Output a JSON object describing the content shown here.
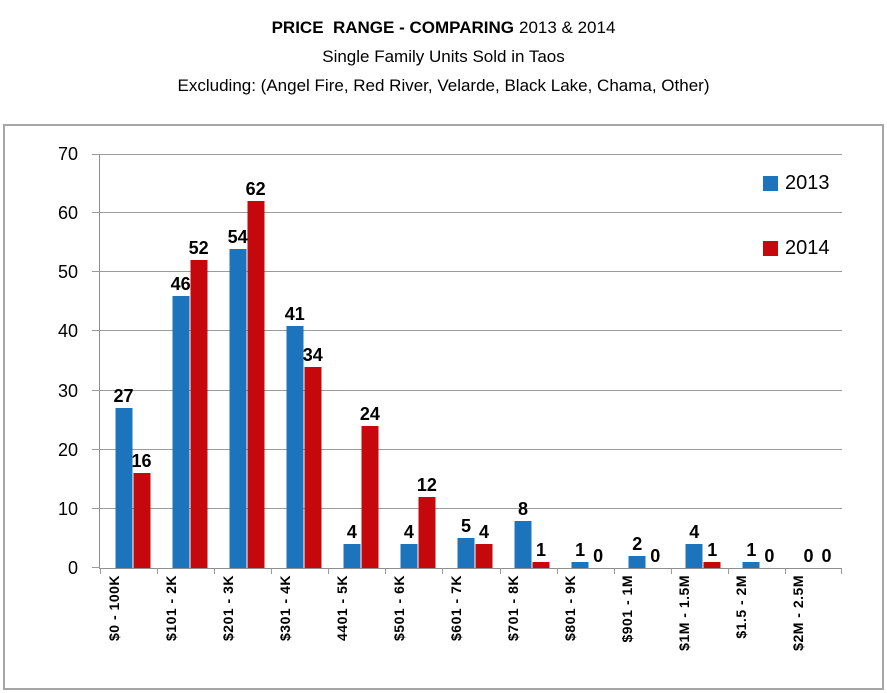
{
  "title": {
    "line1_bold": "PRICE  RANGE - COMPARING",
    "line1_rest": "2013 & 2014",
    "line2": "Single Family Units Sold in Taos",
    "line3": "Excluding: (Angel Fire, Red River, Velarde, Black Lake, Chama, Other)"
  },
  "chart_data": {
    "type": "bar",
    "categories": [
      "$0 - 100K",
      "$101 - 2K",
      "$201 - 3K",
      "$301 - 4K",
      "4401 - 5K",
      "$501 - 6K",
      "$601 - 7K",
      "$701 - 8K",
      "$801 - 9K",
      "$901 - 1M",
      "$1M - 1.5M",
      "$1.5 - 2M",
      "$2M - 2.5M"
    ],
    "series": [
      {
        "name": "2013",
        "color": "#1b74bc",
        "values": [
          27,
          46,
          54,
          41,
          4,
          4,
          5,
          8,
          1,
          2,
          4,
          1,
          0
        ]
      },
      {
        "name": "2014",
        "color": "#c5080b",
        "values": [
          16,
          52,
          62,
          34,
          24,
          12,
          4,
          1,
          0,
          0,
          1,
          0,
          0
        ]
      }
    ],
    "ylim": [
      0,
      70
    ],
    "yticks": [
      0,
      10,
      20,
      30,
      40,
      50,
      60,
      70
    ],
    "grid": true,
    "data_labels": true,
    "legend_position": "top-right",
    "colors": {
      "gridline": "#9a9a9a",
      "axis": "#8e8e8e",
      "frame_border": "#a6a6a6",
      "text": "#000000"
    }
  }
}
